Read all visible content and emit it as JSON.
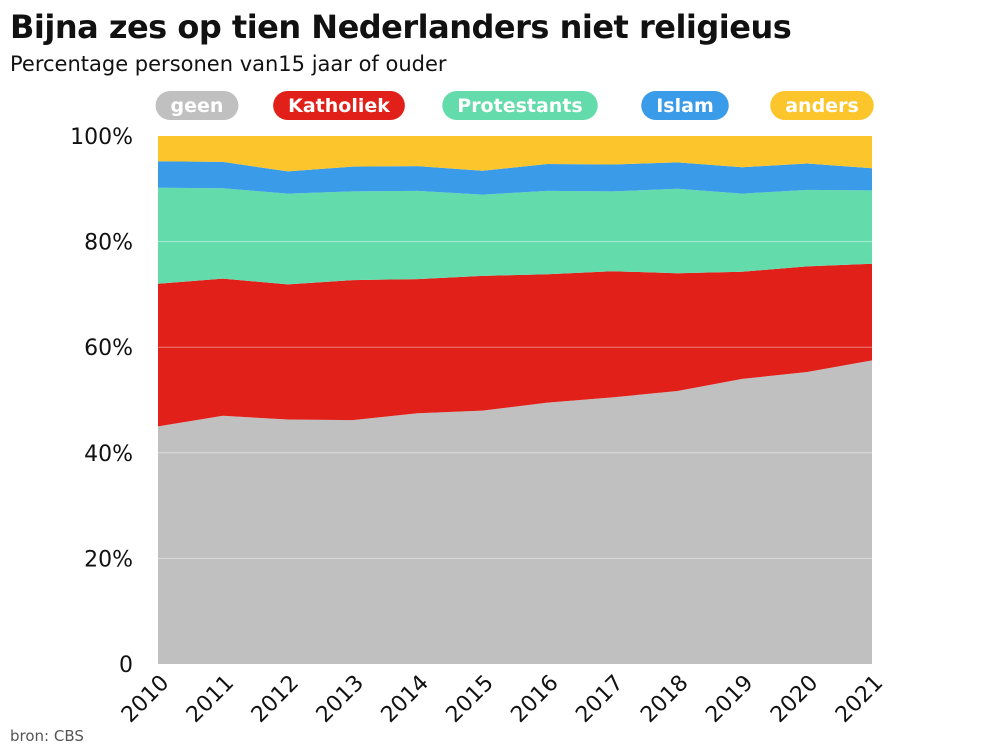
{
  "header": {
    "title": "Bijna zes op tien Nederlanders niet religieus",
    "subtitle": "Percentage personen van15 jaar of ouder"
  },
  "footer": {
    "source": "bron: CBS"
  },
  "chart_data": {
    "type": "area",
    "stacked": true,
    "x": [
      "2010",
      "2011",
      "2012",
      "2013",
      "2014",
      "2015",
      "2016",
      "2017",
      "2018",
      "2019",
      "2020",
      "2021"
    ],
    "series": [
      {
        "name": "geen",
        "color": "#c0c0c0",
        "values": [
          45,
          47,
          46.3,
          46.2,
          47.5,
          48,
          49.5,
          50.5,
          51.7,
          54,
          55.3,
          57.5
        ]
      },
      {
        "name": "Katholiek",
        "color": "#e1201a",
        "values": [
          27,
          26,
          25.6,
          26.5,
          25.4,
          25.5,
          24.3,
          23.9,
          22.3,
          20.3,
          20,
          18.3
        ]
      },
      {
        "name": "Protestants",
        "color": "#63dbab",
        "values": [
          18.2,
          17.1,
          17.2,
          16.8,
          16.7,
          15.4,
          15.8,
          15.1,
          16,
          14.8,
          14.5,
          13.9
        ]
      },
      {
        "name": "Islam",
        "color": "#3a9be8",
        "values": [
          5,
          5,
          4.2,
          4.7,
          4.7,
          4.5,
          5.1,
          5.1,
          5,
          5,
          5,
          4.2
        ]
      },
      {
        "name": "anders",
        "color": "#fbc52b",
        "values": [
          4.8,
          4.9,
          6.7,
          5.8,
          5.7,
          6.6,
          5.3,
          5.4,
          5,
          5.9,
          5.2,
          6.1
        ]
      }
    ],
    "yticks": [
      "0",
      "20%",
      "40%",
      "60%",
      "80%",
      "100%"
    ],
    "ylim": [
      0,
      100
    ],
    "legend": "top"
  }
}
